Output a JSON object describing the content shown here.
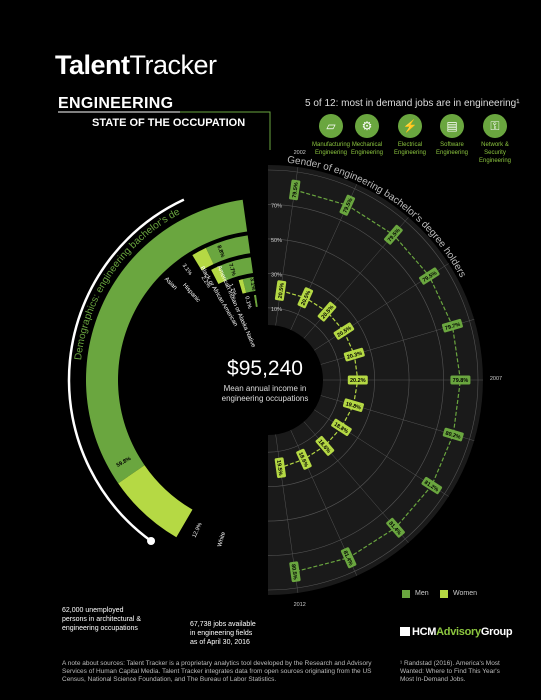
{
  "header": {
    "title_bold": "Talent",
    "title_light": "Tracker",
    "occupation": "ENGINEERING",
    "subtitle": "STATE OF THE OCCUPATION"
  },
  "demand": {
    "note": "5 of 12: most in demand jobs are in engineering¹",
    "jobs": [
      {
        "label_1": "Manufacturing",
        "label_2": "Engineering",
        "icon": "factory-icon"
      },
      {
        "label_1": "Mechanical",
        "label_2": "Engineering",
        "icon": "gear-icon"
      },
      {
        "label_1": "Electrical",
        "label_2": "Engineering",
        "icon": "lightning-icon"
      },
      {
        "label_1": "Software",
        "label_2": "Engineering",
        "icon": "folder-icon"
      },
      {
        "label_1": "Network &",
        "label_2": "Security",
        "label_3": "Engineering",
        "icon": "key-icon"
      }
    ]
  },
  "center": {
    "value": "$95,240",
    "desc_1": "Mean annual income in",
    "desc_2": "engineering occupations"
  },
  "stats": {
    "unemployed_1": "62,000 unemployed",
    "unemployed_2": "persons in architectural &",
    "unemployed_3": "engineering occupations",
    "jobs_1": "67,738 jobs available",
    "jobs_2": "in engineering fields",
    "jobs_3": "as of April 30, 2016"
  },
  "footer": {
    "source_1": "A note about sources: Talent Tracker is a proprietary analytics tool developed by the Research and Advisory",
    "source_2": "Services of Human Capital Media. Talent Tracker integrates data from open sources originating from the US",
    "source_3": "Census, National Science Foundation, and The Bureau of Labor Statistics.",
    "ref_1": "¹ Randstad (2016). America's Most",
    "ref_2": "Wanted: Where to Find This Year's",
    "ref_3": "Most In-Demand Jobs.",
    "brand_a": "HCM",
    "brand_b": "Advisory",
    "brand_c": "Group"
  },
  "legend": {
    "men": "Men",
    "women": "Women"
  },
  "colors": {
    "men": "#6aa63f",
    "women": "#b5d944",
    "grid": "#555555",
    "bg": "#000000"
  },
  "chart_data": [
    {
      "type": "bar",
      "subtype": "radial-stacked",
      "title": "Demographics: engineering bachelor's degree holders",
      "categories": [
        "White",
        "Asian",
        "Hispanic",
        "Black or African American",
        "American Indian or Alaska Native"
      ],
      "series": [
        {
          "name": "Men",
          "values": [
            59.8,
            8.8,
            7.7,
            3.1,
            0.6
          ],
          "labels": [
            "59.8%",
            "8.8%",
            "7.7%",
            "3.1%",
            "0.6%"
          ]
        },
        {
          "name": "Women",
          "values": [
            12.9,
            3.1,
            2.2,
            1.2,
            0.1
          ],
          "labels": [
            "12.9%",
            "3.1%",
            "2.2%",
            "1.2%",
            "0.1%"
          ]
        }
      ]
    },
    {
      "type": "line",
      "subtype": "radial",
      "title": "Gender of engineering bachelor's degree holders",
      "x": [
        2002,
        2003,
        2004,
        2005,
        2006,
        2007,
        2008,
        2009,
        2010,
        2011,
        2012
      ],
      "x_tick_labels": [
        "2002",
        "2007",
        "2012"
      ],
      "r_tick_labels": [
        "10%",
        "30%",
        "50%",
        "70%"
      ],
      "ylim": [
        0,
        90
      ],
      "series": [
        {
          "name": "Men",
          "values": [
            79.5,
            79.5,
            79.5,
            79.5,
            79.7,
            79.8,
            80.2,
            81.2,
            81.4,
            81.4,
            80.5
          ],
          "labels": [
            "79.5%",
            "79.5%",
            "79.5%",
            "79.5%",
            "79.7%",
            "79.8%",
            "80.2%",
            "81.2%",
            "81.4%",
            "81.4%",
            "80.5%"
          ]
        },
        {
          "name": "Women",
          "values": [
            20.5,
            20.5,
            20.5,
            20.5,
            20.3,
            20.2,
            19.8,
            18.8,
            18.6,
            18.6,
            19.5
          ],
          "labels": [
            "20.5%",
            "20.5%",
            "20.5%",
            "20.5%",
            "20.3%",
            "20.2%",
            "19.8%",
            "18.8%",
            "18.6%",
            "18.6%",
            "19.5%"
          ]
        }
      ]
    }
  ]
}
